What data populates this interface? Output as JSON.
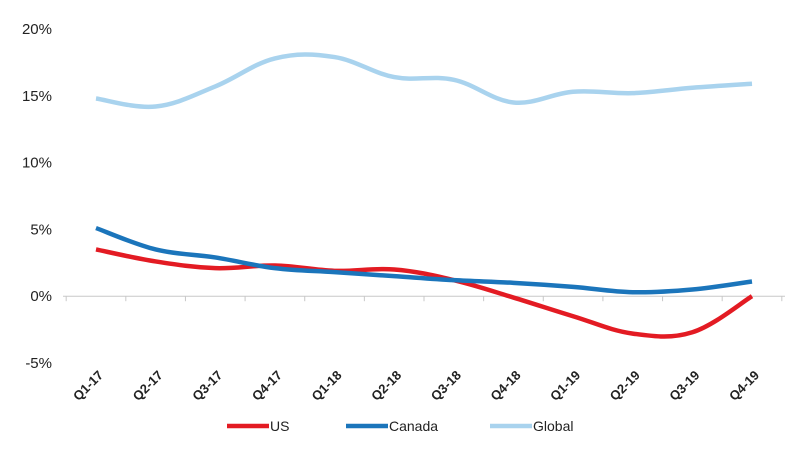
{
  "chart_data": {
    "type": "line",
    "title": "",
    "xlabel": "",
    "ylabel": "",
    "categories": [
      "Q1-17",
      "Q2-17",
      "Q3-17",
      "Q4-17",
      "Q1-18",
      "Q2-18",
      "Q3-18",
      "Q4-18",
      "Q1-19",
      "Q2-19",
      "Q3-19",
      "Q4-19"
    ],
    "ylim": [
      -5,
      20
    ],
    "yticks": [
      -5,
      0,
      5,
      10,
      15,
      20
    ],
    "ytick_labels": [
      "-5%",
      "0%",
      "5%",
      "10%",
      "15%",
      "20%"
    ],
    "grid": false,
    "legend_position": "bottom",
    "series": [
      {
        "name": "US",
        "color": "#e31b23",
        "values": [
          3.5,
          2.6,
          2.1,
          2.3,
          1.9,
          2.0,
          1.2,
          -0.1,
          -1.5,
          -2.8,
          -2.7,
          0.0
        ]
      },
      {
        "name": "Canada",
        "color": "#1b75bb",
        "values": [
          5.1,
          3.5,
          2.9,
          2.1,
          1.8,
          1.5,
          1.2,
          1.0,
          0.7,
          0.3,
          0.5,
          1.1
        ]
      },
      {
        "name": "Global",
        "color": "#a9d3ee",
        "values": [
          14.8,
          14.2,
          15.7,
          17.8,
          17.9,
          16.4,
          16.2,
          14.5,
          15.3,
          15.2,
          15.6,
          15.9
        ]
      }
    ]
  }
}
